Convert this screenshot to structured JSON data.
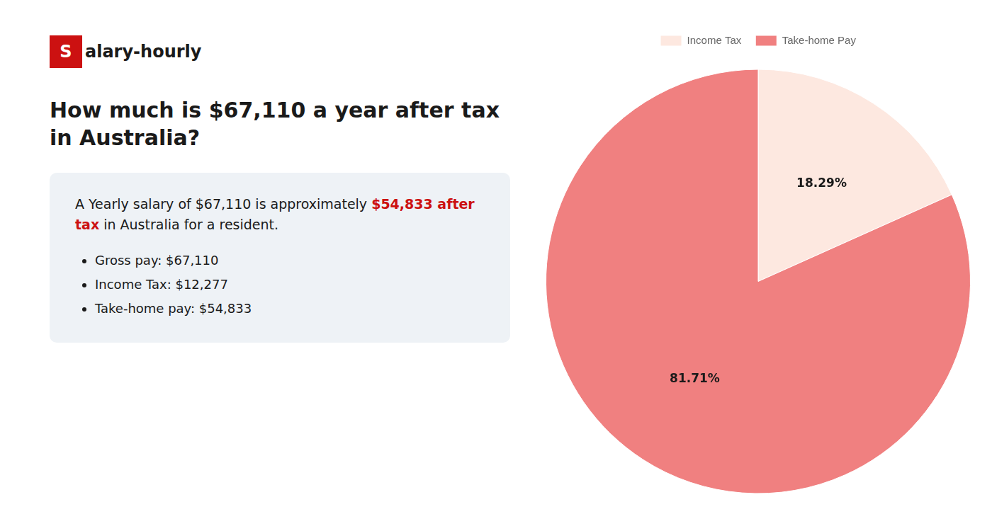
{
  "chart_data": {
    "type": "pie",
    "title": "How much is $67,110 a year after tax in Australia?",
    "categories": [
      "Income Tax",
      "Take-home Pay"
    ],
    "values": [
      18.29,
      81.71
    ],
    "value_labels": [
      "18.29%",
      "81.71%"
    ],
    "colors": [
      "#fde8e0",
      "#f08080"
    ],
    "data_labels": true,
    "legend": "top",
    "annotations": [
      {
        "text": "Salary-hourly",
        "color": "#cc1111"
      },
      {
        "text": "A Yearly salary of $67,110 is approximately"
      },
      {
        "text": "$54,833 after tax",
        "color": "#cc1111"
      },
      {
        "text": "in Australia for a resident."
      },
      {
        "text": "Gross pay: $67,110"
      },
      {
        "text": "Income Tax: $12,277"
      },
      {
        "text": "Take-home pay: $54,833"
      }
    ]
  }
}
